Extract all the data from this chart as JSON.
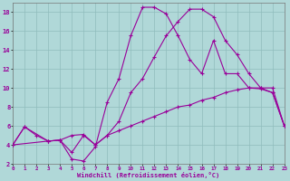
{
  "background_color": "#b0d8d8",
  "grid_color": "#90bcbc",
  "line_color": "#990099",
  "xlim": [
    0,
    23
  ],
  "ylim": [
    2,
    19
  ],
  "xticks": [
    0,
    1,
    2,
    3,
    4,
    5,
    6,
    7,
    8,
    9,
    10,
    11,
    12,
    13,
    14,
    15,
    16,
    17,
    18,
    19,
    20,
    21,
    22,
    23
  ],
  "yticks": [
    2,
    4,
    6,
    8,
    10,
    12,
    14,
    16,
    18
  ],
  "xlabel": "Windchill (Refroidissement éolien,°C)",
  "line1_x": [
    0,
    1,
    2,
    3,
    4,
    5,
    6,
    7,
    8,
    9,
    10,
    11,
    12,
    13,
    14,
    15,
    16,
    17,
    18,
    19,
    20,
    21,
    22,
    23
  ],
  "line1_y": [
    4.0,
    5.9,
    5.0,
    4.4,
    4.5,
    5.0,
    5.1,
    4.0,
    5.0,
    5.5,
    6.0,
    6.5,
    7.0,
    7.5,
    8.0,
    8.2,
    8.7,
    9.0,
    9.5,
    9.8,
    10.0,
    9.9,
    9.5,
    6.0
  ],
  "line2_x": [
    0,
    1,
    3,
    4,
    5,
    6,
    7,
    8,
    9,
    10,
    11,
    12,
    13,
    14,
    15,
    16,
    17,
    18,
    19,
    20,
    21,
    22,
    23
  ],
  "line2_y": [
    4.0,
    5.9,
    4.4,
    4.5,
    2.5,
    2.3,
    3.8,
    8.5,
    11.0,
    15.5,
    18.5,
    18.5,
    17.8,
    15.5,
    13.0,
    11.5,
    15.0,
    11.5,
    11.5,
    10.0,
    10.0,
    9.5,
    6.0
  ],
  "line3_x": [
    0,
    3,
    4,
    5,
    6,
    7,
    8,
    9,
    10,
    11,
    12,
    13,
    14,
    15,
    16,
    17,
    18,
    19,
    20,
    21,
    22,
    23
  ],
  "line3_y": [
    4.0,
    4.4,
    4.5,
    3.2,
    5.0,
    4.0,
    5.0,
    6.5,
    9.5,
    11.0,
    13.3,
    15.5,
    17.0,
    18.3,
    18.3,
    17.5,
    15.0,
    13.5,
    11.5,
    10.0,
    10.0,
    6.0
  ]
}
